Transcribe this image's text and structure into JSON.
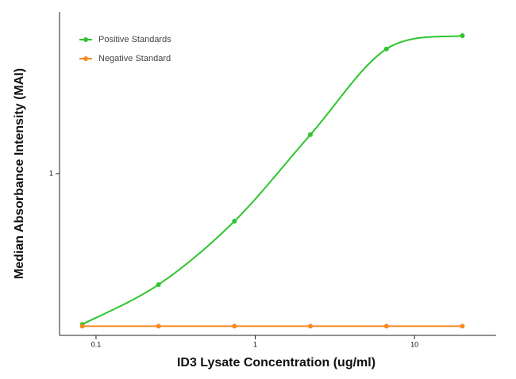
{
  "chart_data": {
    "type": "line",
    "x_label": "ID3 Lysate Concentration (ug/ml)",
    "y_label": "Median Absorbance Intensity (MAI)",
    "x": [
      0.082,
      0.247,
      0.74,
      2.22,
      6.67,
      20
    ],
    "series": [
      {
        "name": "Positive Standards",
        "color": "#2ec52e",
        "values": [
          0.117,
          0.206,
          0.508,
          1.74,
          5.9,
          7.13
        ]
      },
      {
        "name": "Negative Standard",
        "color": "#f58a1f",
        "values": [
          0.114,
          0.114,
          0.114,
          0.114,
          0.114,
          0.114
        ]
      }
    ],
    "xlim": [
      0.059,
      32.6
    ],
    "xticks": [
      0.1,
      1,
      10
    ],
    "x_log": true,
    "ylim": [
      0.1,
      10
    ],
    "yticks": [
      1
    ],
    "y_log": true,
    "legend": "top-left"
  }
}
